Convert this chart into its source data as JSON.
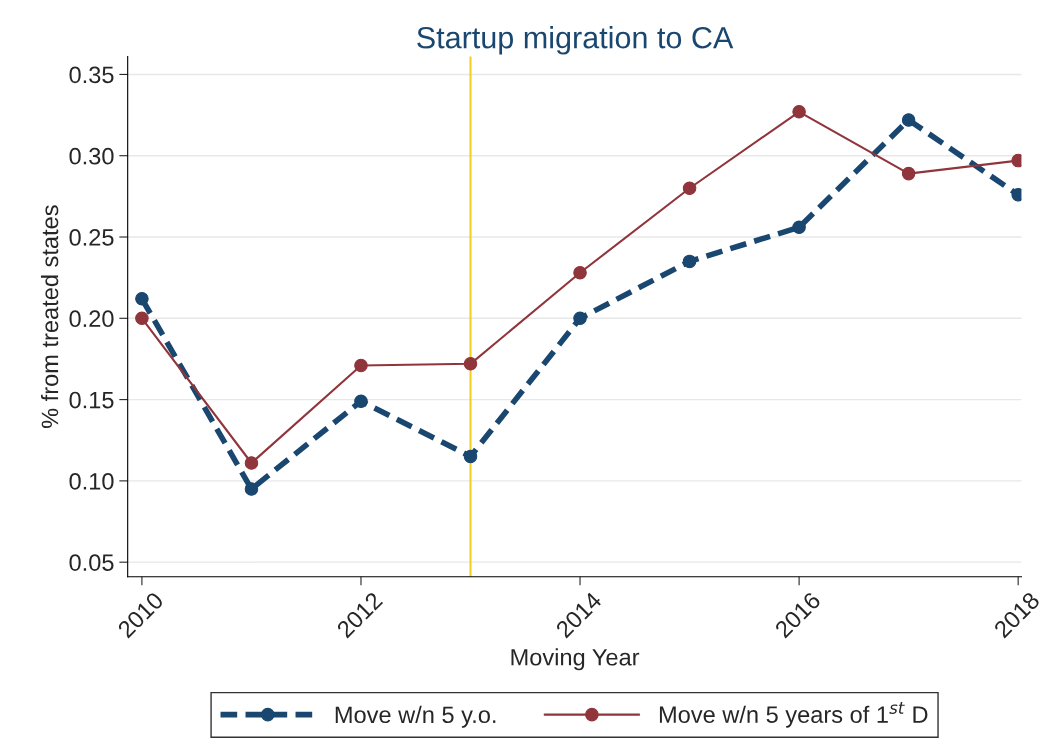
{
  "chart_data": {
    "type": "line",
    "title": "Startup migration to CA",
    "xlabel": "Moving Year",
    "ylabel": "% from treated states",
    "x": [
      2010,
      2011,
      2012,
      2013,
      2014,
      2015,
      2016,
      2017,
      2018
    ],
    "series": [
      {
        "name": "Move w/n 5 y.o.",
        "color": "#1a476f",
        "line_style": "dashed",
        "values": [
          0.212,
          0.095,
          0.149,
          0.115,
          0.2,
          0.235,
          0.256,
          0.322,
          0.276
        ]
      },
      {
        "name": "Move w/n 5 years of 1$^{st}$ D",
        "color": "#90353b",
        "line_style": "solid",
        "values": [
          0.2,
          0.111,
          0.171,
          0.172,
          0.228,
          0.28,
          0.327,
          0.289,
          0.297
        ]
      }
    ],
    "xlim": [
      2009.87,
      2018.03
    ],
    "xticks": [
      2010,
      2012,
      2014,
      2016,
      2018
    ],
    "ylim": [
      0.041,
      0.361
    ],
    "yticks": [
      {
        "value": 0.05,
        "label": "0.05"
      },
      {
        "value": 0.1,
        "label": "0.10"
      },
      {
        "value": 0.15,
        "label": "0.15"
      },
      {
        "value": 0.2,
        "label": "0.20"
      },
      {
        "value": 0.25,
        "label": "0.25"
      },
      {
        "value": 0.3,
        "label": "0.30"
      },
      {
        "value": 0.35,
        "label": "0.35"
      }
    ],
    "ref_lines": [
      {
        "axis": "x",
        "value": 2013,
        "color": "#f0d020"
      }
    ],
    "grid": "y",
    "legend": "bottom",
    "marker": "circle"
  }
}
